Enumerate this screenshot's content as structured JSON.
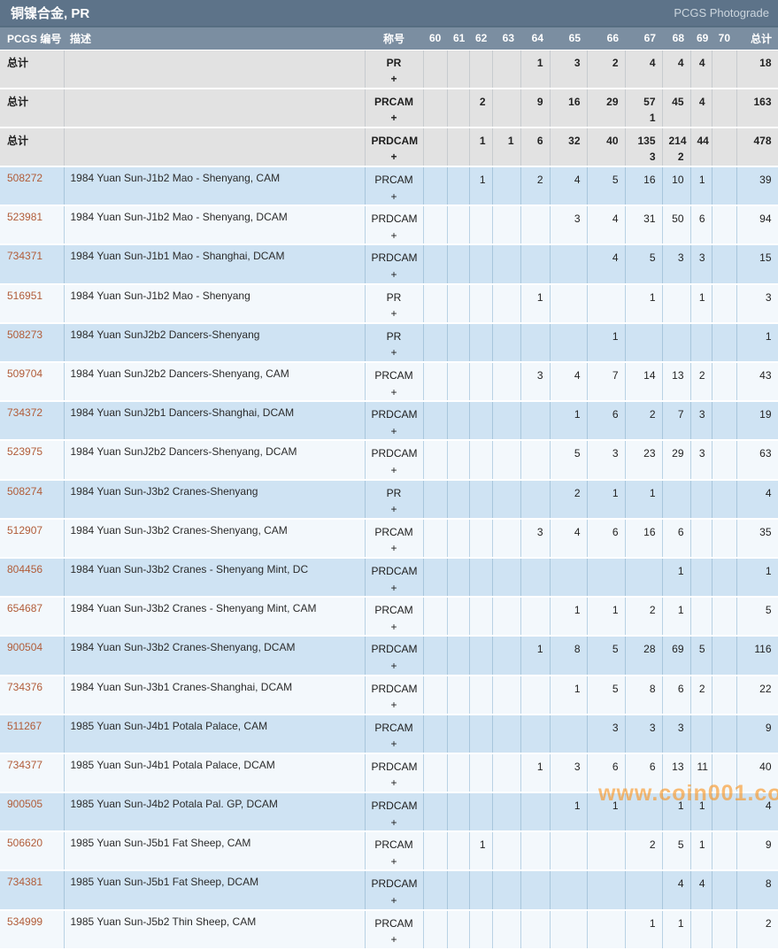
{
  "titlebar": {
    "title": "铜镍合金, PR",
    "right_label": "PCGS Photograde"
  },
  "watermark": {
    "text": "www.coin001.com",
    "color": "#f89420"
  },
  "colors": {
    "titlebar_bg": "#5d7389",
    "header_bg": "#7b8ea1",
    "summary_row_bg": "#e2e2e2",
    "row_blue_bg": "#cfe3f3",
    "row_white_bg": "#f3f8fc",
    "pcgs_number_link": "#b15c38"
  },
  "table": {
    "headers": {
      "id": "PCGS 编号",
      "description": "描述",
      "designation": "称号",
      "grades": [
        "60",
        "61",
        "62",
        "63",
        "64",
        "65",
        "66",
        "67",
        "68",
        "69",
        "70"
      ],
      "total": "总计"
    },
    "plus_symbol": "+",
    "summary_label": "总计",
    "summary_rows": [
      {
        "designation": "PR",
        "counts": [
          "",
          "",
          "",
          "",
          "1",
          "3",
          "2",
          "4",
          "4",
          "4",
          ""
        ],
        "plus": [
          "",
          "",
          "",
          "",
          "",
          "",
          "",
          "",
          "",
          "",
          ""
        ],
        "total": "18"
      },
      {
        "designation": "PRCAM",
        "counts": [
          "",
          "",
          "2",
          "",
          "9",
          "16",
          "29",
          "57",
          "45",
          "4",
          ""
        ],
        "plus": [
          "",
          "",
          "",
          "",
          "",
          "",
          "",
          "1",
          "",
          "",
          ""
        ],
        "total": "163"
      },
      {
        "designation": "PRDCAM",
        "counts": [
          "",
          "",
          "1",
          "1",
          "6",
          "32",
          "40",
          "135",
          "214",
          "44",
          ""
        ],
        "plus": [
          "",
          "",
          "",
          "",
          "",
          "",
          "",
          "3",
          "2",
          "",
          ""
        ],
        "total": "478"
      }
    ],
    "rows": [
      {
        "id": "508272",
        "description": "1984 Yuan Sun-J1b2 Mao - Shenyang, CAM",
        "designation": "PRCAM",
        "counts": [
          "",
          "",
          "1",
          "",
          "2",
          "4",
          "5",
          "16",
          "10",
          "1",
          ""
        ],
        "total": "39"
      },
      {
        "id": "523981",
        "description": "1984 Yuan Sun-J1b2 Mao - Shenyang, DCAM",
        "designation": "PRDCAM",
        "counts": [
          "",
          "",
          "",
          "",
          "",
          "3",
          "4",
          "31",
          "50",
          "6",
          ""
        ],
        "total": "94"
      },
      {
        "id": "734371",
        "description": "1984 Yuan Sun-J1b1 Mao - Shanghai, DCAM",
        "designation": "PRDCAM",
        "counts": [
          "",
          "",
          "",
          "",
          "",
          "",
          "4",
          "5",
          "3",
          "3",
          ""
        ],
        "total": "15"
      },
      {
        "id": "516951",
        "description": "1984 Yuan Sun-J1b2 Mao - Shenyang",
        "designation": "PR",
        "counts": [
          "",
          "",
          "",
          "",
          "1",
          "",
          "",
          "1",
          "",
          "1",
          ""
        ],
        "total": "3"
      },
      {
        "id": "508273",
        "description": "1984 Yuan SunJ2b2 Dancers-Shenyang",
        "designation": "PR",
        "counts": [
          "",
          "",
          "",
          "",
          "",
          "",
          "1",
          "",
          "",
          "",
          ""
        ],
        "total": "1"
      },
      {
        "id": "509704",
        "description": "1984 Yuan SunJ2b2 Dancers-Shenyang, CAM",
        "designation": "PRCAM",
        "counts": [
          "",
          "",
          "",
          "",
          "3",
          "4",
          "7",
          "14",
          "13",
          "2",
          ""
        ],
        "total": "43"
      },
      {
        "id": "734372",
        "description": "1984 Yuan SunJ2b1 Dancers-Shanghai, DCAM",
        "designation": "PRDCAM",
        "counts": [
          "",
          "",
          "",
          "",
          "",
          "1",
          "6",
          "2",
          "7",
          "3",
          ""
        ],
        "total": "19"
      },
      {
        "id": "523975",
        "description": "1984 Yuan SunJ2b2 Dancers-Shenyang, DCAM",
        "designation": "PRDCAM",
        "counts": [
          "",
          "",
          "",
          "",
          "",
          "5",
          "3",
          "23",
          "29",
          "3",
          ""
        ],
        "total": "63"
      },
      {
        "id": "508274",
        "description": "1984 Yuan Sun-J3b2 Cranes-Shenyang",
        "designation": "PR",
        "counts": [
          "",
          "",
          "",
          "",
          "",
          "2",
          "1",
          "1",
          "",
          "",
          ""
        ],
        "total": "4"
      },
      {
        "id": "512907",
        "description": "1984 Yuan Sun-J3b2 Cranes-Shenyang, CAM",
        "designation": "PRCAM",
        "counts": [
          "",
          "",
          "",
          "",
          "3",
          "4",
          "6",
          "16",
          "6",
          "",
          ""
        ],
        "total": "35"
      },
      {
        "id": "804456",
        "description": "1984 Yuan Sun-J3b2 Cranes - Shenyang Mint, DC",
        "designation": "PRDCAM",
        "counts": [
          "",
          "",
          "",
          "",
          "",
          "",
          "",
          "",
          "1",
          "",
          ""
        ],
        "total": "1"
      },
      {
        "id": "654687",
        "description": "1984 Yuan Sun-J3b2 Cranes - Shenyang Mint, CAM",
        "designation": "PRCAM",
        "counts": [
          "",
          "",
          "",
          "",
          "",
          "1",
          "1",
          "2",
          "1",
          "",
          ""
        ],
        "total": "5"
      },
      {
        "id": "900504",
        "description": "1984 Yuan Sun-J3b2 Cranes-Shenyang, DCAM",
        "designation": "PRDCAM",
        "counts": [
          "",
          "",
          "",
          "",
          "1",
          "8",
          "5",
          "28",
          "69",
          "5",
          ""
        ],
        "total": "116"
      },
      {
        "id": "734376",
        "description": "1984 Yuan Sun-J3b1 Cranes-Shanghai, DCAM",
        "designation": "PRDCAM",
        "counts": [
          "",
          "",
          "",
          "",
          "",
          "1",
          "5",
          "8",
          "6",
          "2",
          ""
        ],
        "total": "22"
      },
      {
        "id": "511267",
        "description": "1985 Yuan Sun-J4b1 Potala Palace, CAM",
        "designation": "PRCAM",
        "counts": [
          "",
          "",
          "",
          "",
          "",
          "",
          "3",
          "3",
          "3",
          "",
          ""
        ],
        "total": "9"
      },
      {
        "id": "734377",
        "description": "1985 Yuan Sun-J4b1 Potala Palace, DCAM",
        "designation": "PRDCAM",
        "counts": [
          "",
          "",
          "",
          "",
          "1",
          "3",
          "6",
          "6",
          "13",
          "11",
          ""
        ],
        "total": "40"
      },
      {
        "id": "900505",
        "description": "1985 Yuan Sun-J4b2 Potala Pal. GP, DCAM",
        "designation": "PRDCAM",
        "counts": [
          "",
          "",
          "",
          "",
          "",
          "1",
          "1",
          "",
          "1",
          "1",
          ""
        ],
        "total": "4"
      },
      {
        "id": "506620",
        "description": "1985 Yuan Sun-J5b1 Fat Sheep, CAM",
        "designation": "PRCAM",
        "counts": [
          "",
          "",
          "1",
          "",
          "",
          "",
          "",
          "2",
          "5",
          "1",
          ""
        ],
        "total": "9"
      },
      {
        "id": "734381",
        "description": "1985 Yuan Sun-J5b1 Fat Sheep, DCAM",
        "designation": "PRDCAM",
        "counts": [
          "",
          "",
          "",
          "",
          "",
          "",
          "",
          "",
          "4",
          "4",
          ""
        ],
        "total": "8"
      },
      {
        "id": "534999",
        "description": "1985 Yuan Sun-J5b2 Thin Sheep, CAM",
        "designation": "PRCAM",
        "counts": [
          "",
          "",
          "",
          "",
          "",
          "",
          "",
          "1",
          "1",
          "",
          ""
        ],
        "total": "2"
      }
    ]
  }
}
